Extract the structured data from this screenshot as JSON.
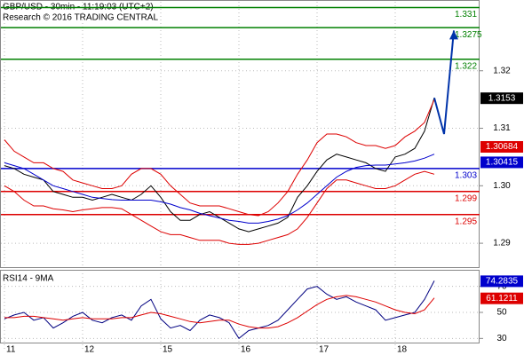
{
  "chart_data": [
    {
      "type": "line",
      "title": "GBP/USD - 30min - 11:19:03 (UTC+2)",
      "subtitle": "Research © 2016 TRADING CENTRAL",
      "categories": [
        "11",
        null,
        null,
        null,
        null,
        null,
        null,
        null,
        "12",
        null,
        null,
        null,
        null,
        null,
        null,
        null,
        "15",
        null,
        null,
        null,
        null,
        null,
        null,
        null,
        "16",
        null,
        null,
        null,
        null,
        null,
        null,
        null,
        "17",
        null,
        null,
        null,
        null,
        null,
        null,
        null,
        "18",
        null,
        null,
        null,
        null,
        null,
        null
      ],
      "series": [
        {
          "color": "#000000",
          "values": [
            1.3035,
            1.303,
            1.302,
            1.3015,
            1.301,
            1.299,
            1.2985,
            1.298,
            1.298,
            1.2975,
            1.298,
            1.2985,
            1.298,
            1.2975,
            1.2985,
            1.3,
            1.298,
            1.2955,
            1.294,
            1.294,
            1.295,
            1.2955,
            1.2945,
            1.2935,
            1.2925,
            1.292,
            1.2925,
            1.293,
            1.2935,
            1.2945,
            1.298,
            1.3,
            1.3025,
            1.3045,
            1.3055,
            1.305,
            1.3045,
            1.304,
            1.303,
            1.3025,
            1.305,
            1.3055,
            1.3065,
            1.3095,
            1.3153,
            null,
            null
          ]
        },
        {
          "color": "#0000cc",
          "values": [
            1.304,
            1.3035,
            1.303,
            1.302,
            1.301,
            1.3,
            1.2995,
            1.299,
            1.2985,
            1.298,
            1.2978,
            1.2976,
            1.2975,
            1.2975,
            1.2975,
            1.2975,
            1.2972,
            1.2968,
            1.2962,
            1.2958,
            1.2952,
            1.2948,
            1.2944,
            1.294,
            1.2938,
            1.2935,
            1.2935,
            1.2938,
            1.2942,
            1.2948,
            1.2958,
            1.297,
            1.2985,
            1.3,
            1.3015,
            1.3025,
            1.3032,
            1.3035,
            1.3036,
            1.3036,
            1.3038,
            1.304,
            1.3043,
            1.3048,
            1.3055,
            null,
            null
          ]
        },
        {
          "color": "#dd0000",
          "values": [
            1.308,
            1.306,
            1.305,
            1.304,
            1.304,
            1.303,
            1.3025,
            1.301,
            1.3005,
            1.3,
            1.2995,
            1.2995,
            1.3,
            1.302,
            1.303,
            1.303,
            1.302,
            1.3,
            1.2985,
            1.297,
            1.2965,
            1.2965,
            1.2965,
            1.296,
            1.2955,
            1.295,
            1.2948,
            1.2955,
            1.297,
            1.299,
            1.302,
            1.3045,
            1.3075,
            1.309,
            1.309,
            1.3085,
            1.3075,
            1.307,
            1.307,
            1.3065,
            1.307,
            1.3085,
            1.3095,
            1.311,
            1.315,
            null,
            null
          ]
        },
        {
          "color": "#dd0000",
          "values": [
            1.3,
            1.299,
            1.2975,
            1.2965,
            1.2965,
            1.296,
            1.2958,
            1.2955,
            1.2958,
            1.296,
            1.2962,
            1.2962,
            1.296,
            1.295,
            1.294,
            1.293,
            1.292,
            1.2915,
            1.2915,
            1.291,
            1.2905,
            1.2905,
            1.2905,
            1.29,
            1.2898,
            1.2898,
            1.29,
            1.2905,
            1.291,
            1.2915,
            1.2925,
            1.2945,
            1.297,
            1.2995,
            1.301,
            1.301,
            1.3005,
            1.3,
            1.2995,
            1.2995,
            1.3,
            1.301,
            1.302,
            1.3025,
            1.302,
            null,
            null
          ]
        },
        {
          "color": "#0033aa",
          "values": [
            null,
            null,
            null,
            null,
            null,
            null,
            null,
            null,
            null,
            null,
            null,
            null,
            null,
            null,
            null,
            null,
            null,
            null,
            null,
            null,
            null,
            null,
            null,
            null,
            null,
            null,
            null,
            null,
            null,
            null,
            null,
            null,
            null,
            null,
            null,
            null,
            null,
            null,
            null,
            null,
            null,
            null,
            null,
            null,
            1.3153,
            1.309,
            1.327
          ]
        }
      ],
      "levels": [
        {
          "value": 1.331,
          "color": "#008000"
        },
        {
          "value": 1.3275,
          "color": "#008000"
        },
        {
          "value": 1.322,
          "color": "#008000"
        },
        {
          "value": 1.303,
          "color": "#0000cc"
        },
        {
          "value": 1.299,
          "color": "#dd0000"
        },
        {
          "value": 1.295,
          "color": "#dd0000"
        }
      ],
      "markers": [
        {
          "value": 1.3153,
          "color": "#000000"
        },
        {
          "value": 1.30684,
          "color": "#dd0000"
        },
        {
          "value": 1.30415,
          "color": "#0000cc"
        }
      ],
      "ylim": [
        1.286,
        1.332
      ],
      "yticks": [
        1.32,
        1.31,
        {
          "value": 1.3,
          "label": "1.30"
        },
        1.29
      ],
      "grid": true
    },
    {
      "type": "line",
      "title": "RSI14 - 9MA",
      "series": [
        {
          "color": "#000080",
          "values": [
            45,
            48,
            50,
            44,
            46,
            38,
            42,
            47,
            50,
            44,
            42,
            46,
            48,
            44,
            55,
            60,
            45,
            38,
            40,
            36,
            44,
            48,
            46,
            42,
            30,
            36,
            38,
            40,
            44,
            52,
            60,
            68,
            70,
            64,
            60,
            62,
            58,
            55,
            52,
            44,
            46,
            48,
            50,
            60,
            74.2835,
            null,
            null
          ]
        },
        {
          "color": "#dd0000",
          "values": [
            46,
            46,
            47,
            47,
            46,
            45,
            44,
            45,
            46,
            45,
            45,
            45,
            46,
            46,
            48,
            50,
            49,
            47,
            45,
            43,
            42,
            43,
            44,
            44,
            41,
            39,
            38,
            38,
            39,
            42,
            46,
            51,
            56,
            60,
            62,
            63,
            62,
            60,
            58,
            55,
            52,
            50,
            49,
            52,
            61.1211,
            null,
            null
          ]
        }
      ],
      "markers": [
        {
          "value": 74.2835,
          "color": "#0000cc"
        },
        {
          "value": 61.1211,
          "color": "#dd0000"
        }
      ],
      "ylim": [
        20,
        80
      ],
      "yticks": [
        70,
        50,
        30
      ],
      "grid": true
    }
  ]
}
